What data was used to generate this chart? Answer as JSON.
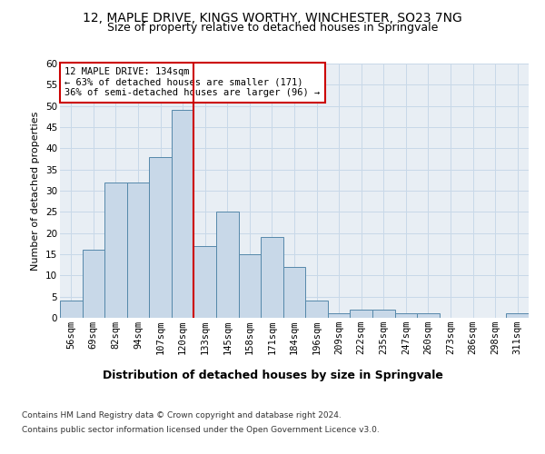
{
  "title1": "12, MAPLE DRIVE, KINGS WORTHY, WINCHESTER, SO23 7NG",
  "title2": "Size of property relative to detached houses in Springvale",
  "xlabel": "Distribution of detached houses by size in Springvale",
  "ylabel": "Number of detached properties",
  "categories": [
    "56sqm",
    "69sqm",
    "82sqm",
    "94sqm",
    "107sqm",
    "120sqm",
    "133sqm",
    "145sqm",
    "158sqm",
    "171sqm",
    "184sqm",
    "196sqm",
    "209sqm",
    "222sqm",
    "235sqm",
    "247sqm",
    "260sqm",
    "273sqm",
    "286sqm",
    "298sqm",
    "311sqm"
  ],
  "values": [
    4,
    16,
    32,
    32,
    38,
    49,
    17,
    25,
    15,
    19,
    12,
    4,
    1,
    2,
    2,
    1,
    1,
    0,
    0,
    0,
    1
  ],
  "bar_color": "#c8d8e8",
  "bar_edge_color": "#5588aa",
  "highlight_index": 6,
  "vline_color": "#cc0000",
  "annotation_box_text": "12 MAPLE DRIVE: 134sqm\n← 63% of detached houses are smaller (171)\n36% of semi-detached houses are larger (96) →",
  "annotation_box_color": "#cc0000",
  "ylim": [
    0,
    60
  ],
  "yticks": [
    0,
    5,
    10,
    15,
    20,
    25,
    30,
    35,
    40,
    45,
    50,
    55,
    60
  ],
  "grid_color": "#c8d8e8",
  "background_color": "#e8eef4",
  "footer1": "Contains HM Land Registry data © Crown copyright and database right 2024.",
  "footer2": "Contains public sector information licensed under the Open Government Licence v3.0.",
  "title1_fontsize": 10,
  "title2_fontsize": 9,
  "xlabel_fontsize": 9,
  "ylabel_fontsize": 8,
  "tick_fontsize": 7.5,
  "footer_fontsize": 6.5
}
